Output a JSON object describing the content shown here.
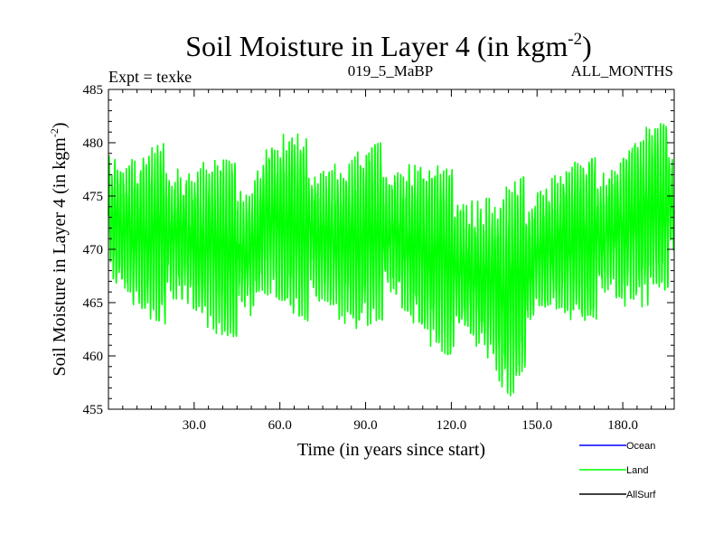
{
  "chart_data": {
    "type": "line",
    "title": "Soil Moisture in Layer 4 (in kgm",
    "title_sup": "-2",
    "title_close": ")",
    "subtitle_left": "Expt = texke",
    "subtitle_center": "019_5_MaBP",
    "subtitle_right": "ALL_MONTHS",
    "xlabel": "Time (in years since start)",
    "ylabel": "Soil Moisture in Layer 4 (in kgm",
    "ylabel_sup": "-2",
    "ylabel_close": ")",
    "xlim": [
      0,
      198
    ],
    "ylim": [
      455,
      485
    ],
    "x_ticks": [
      "30.0",
      "60.0",
      "90.0",
      "120.0",
      "150.0",
      "180.0"
    ],
    "x_tick_values": [
      30,
      60,
      90,
      120,
      150,
      180
    ],
    "y_ticks": [
      "455",
      "460",
      "465",
      "470",
      "475",
      "480",
      "485"
    ],
    "y_tick_values": [
      455,
      460,
      465,
      470,
      475,
      480,
      485
    ],
    "grid": false,
    "legend_position": "bottom-right",
    "series": [
      {
        "name": "Ocean",
        "color": "#0000ff",
        "values": []
      },
      {
        "name": "Land",
        "color": "#00ff00",
        "mean_envelope": {
          "x": [
            0,
            10,
            20,
            30,
            40,
            50,
            55,
            65,
            75,
            85,
            95,
            105,
            115,
            125,
            135,
            140,
            150,
            160,
            170,
            180,
            190,
            198
          ],
          "low": [
            465,
            463.5,
            463,
            462.5,
            462,
            461.5,
            464.5,
            464,
            462.5,
            462,
            463.5,
            462,
            460.5,
            459.5,
            458.5,
            455.5,
            461.5,
            463,
            463.5,
            463,
            465,
            467
          ],
          "high": [
            480.5,
            479,
            480,
            479,
            478.5,
            477.5,
            481,
            481,
            479.5,
            479,
            480,
            479.5,
            478,
            477,
            475,
            476,
            477.5,
            478.5,
            478.5,
            481,
            482,
            481.5
          ]
        },
        "annual_cycle_amplitude": 5.5,
        "sampling": "monthly"
      },
      {
        "name": "AllSurf",
        "color": "#000000",
        "values": []
      }
    ]
  }
}
